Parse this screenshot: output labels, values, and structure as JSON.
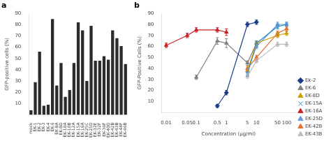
{
  "chart_data": [
    {
      "type": "bar",
      "title": "a",
      "categories": [
        "mock",
        "EK-1",
        "EK-2",
        "EK-3",
        "EK-4",
        "EK-6",
        "EK-8A",
        "EK-8D",
        "EK-10A",
        "EK-10B",
        "EK-12A",
        "EK-15A",
        "EK-16A",
        "EK-25C",
        "EK-25D",
        "EK-32E",
        "EK-32F",
        "EK-36F",
        "EK-40D",
        "EK-42B",
        "EK-43B",
        "EK-44F",
        "EK-46B"
      ],
      "values": [
        4,
        29,
        56,
        8,
        9,
        85,
        26,
        46,
        16,
        22,
        46,
        82,
        75,
        30,
        79,
        48,
        48,
        52,
        49,
        75,
        68,
        61,
        45
      ],
      "color": "#2b2b2b",
      "ylabel": "GFP-positive cells (%)",
      "ylim": [
        0,
        90
      ],
      "yticks": [
        10,
        20,
        30,
        40,
        50,
        60,
        70,
        80,
        90
      ],
      "grid": false
    },
    {
      "type": "line",
      "title": "b",
      "xlabel": "Concentration (μg/ml)",
      "ylabel": "GFP-Positive Cells (%)",
      "log": "x",
      "xlim": [
        0.007,
        200
      ],
      "xticks": [
        0.01,
        0.05,
        0.1,
        0.5,
        1,
        5,
        10,
        50,
        100
      ],
      "ylim": [
        0,
        90
      ],
      "yticks": [
        10,
        20,
        30,
        40,
        50,
        60,
        70,
        80,
        90
      ],
      "grid": false,
      "legend": "lower right",
      "series": [
        {
          "name": "Ek-2",
          "color": "#1a3a8a",
          "marker": "diamond",
          "x": [
            0.5,
            1,
            5,
            10
          ],
          "values": [
            6,
            18,
            80,
            82
          ],
          "yerr": [
            1.5,
            2,
            2,
            2
          ]
        },
        {
          "name": "EK-6",
          "color": "#808080",
          "marker": "triangle",
          "x": [
            0.1,
            0.5,
            1,
            5,
            10
          ],
          "values": [
            32,
            65,
            63,
            45,
            63
          ],
          "yerr": [
            2,
            3,
            4,
            2,
            2
          ]
        },
        {
          "name": "EK-8D",
          "color": "#c8a000",
          "marker": "triangle",
          "x": [
            5,
            10,
            50,
            100
          ],
          "values": [
            38,
            63,
            70,
            72
          ],
          "yerr": [
            2,
            2,
            2,
            2
          ]
        },
        {
          "name": "EK-15A",
          "color": "#2288cc",
          "marker": "x",
          "x": [
            5,
            10,
            50,
            100
          ],
          "values": [
            35,
            63,
            78,
            80
          ],
          "yerr": [
            2,
            2,
            2,
            2
          ]
        },
        {
          "name": "EK-16A",
          "color": "#cc2222",
          "marker": "triangle",
          "x": [
            0.01,
            0.05,
            0.1,
            0.5,
            1
          ],
          "values": [
            61,
            70,
            75,
            75,
            73
          ],
          "yerr": [
            2,
            2,
            2,
            2,
            3
          ]
        },
        {
          "name": "EK-25D",
          "color": "#6699dd",
          "marker": "triangle",
          "x": [
            5,
            10,
            50,
            100
          ],
          "values": [
            38,
            60,
            80,
            80
          ],
          "yerr": [
            2,
            2,
            2,
            2
          ]
        },
        {
          "name": "EK-42B",
          "color": "#e07030",
          "marker": "triangle",
          "x": [
            5,
            10,
            50,
            100
          ],
          "values": [
            40,
            50,
            72,
            76
          ],
          "yerr": [
            2,
            2,
            2,
            2
          ]
        },
        {
          "name": "EK-43B",
          "color": "#bbbbbb",
          "marker": "triangle",
          "x": [
            5,
            10,
            50,
            100
          ],
          "values": [
            33,
            47,
            62,
            62
          ],
          "yerr": [
            2,
            2,
            2,
            2
          ]
        }
      ]
    }
  ]
}
